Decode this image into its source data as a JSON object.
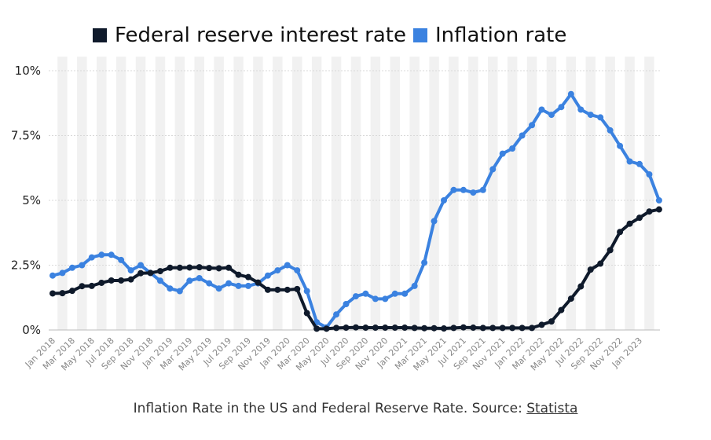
{
  "legend": {
    "fed_label": "Federal reserve interest rate",
    "infl_label": "Inflation rate"
  },
  "caption": {
    "text": "Inflation Rate in the US and Federal Reserve Rate. Source: ",
    "link": "Statista"
  },
  "colors": {
    "fed": "#0f1a2b",
    "inflation": "#3b82e0",
    "grid": "#d9d9d9",
    "band": "#f1f1f1",
    "axis_text": "#222222",
    "xtick_text": "#888888"
  },
  "chart_data": {
    "type": "line",
    "ylim": [
      0,
      10
    ],
    "yticks": [
      0,
      2.5,
      5,
      7.5,
      10
    ],
    "ytick_labels": [
      "0%",
      "2.5%",
      "5%",
      "7.5%",
      "10%"
    ],
    "grid": true,
    "legend_position": "top",
    "x": [
      "Jan 2018",
      "Feb 2018",
      "Mar 2018",
      "Apr 2018",
      "May 2018",
      "Jun 2018",
      "Jul 2018",
      "Aug 2018",
      "Sep 2018",
      "Oct 2018",
      "Nov 2018",
      "Dec 2018",
      "Jan 2019",
      "Feb 2019",
      "Mar 2019",
      "Apr 2019",
      "May 2019",
      "Jun 2019",
      "Jul 2019",
      "Aug 2019",
      "Sep 2019",
      "Oct 2019",
      "Nov 2019",
      "Dec 2019",
      "Jan 2020",
      "Feb 2020",
      "Mar 2020",
      "Apr 2020",
      "May 2020",
      "Jun 2020",
      "Jul 2020",
      "Aug 2020",
      "Sep 2020",
      "Oct 2020",
      "Nov 2020",
      "Dec 2020",
      "Jan 2021",
      "Feb 2021",
      "Mar 2021",
      "Apr 2021",
      "May 2021",
      "Jun 2021",
      "Jul 2021",
      "Aug 2021",
      "Sep 2021",
      "Oct 2021",
      "Nov 2021",
      "Dec 2021",
      "Jan 2022",
      "Feb 2022",
      "Mar 2022",
      "Apr 2022",
      "May 2022",
      "Jun 2022",
      "Jul 2022",
      "Aug 2022",
      "Sep 2022",
      "Oct 2022",
      "Nov 2022",
      "Dec 2022",
      "Jan 2023",
      "Feb 2023",
      "Mar 2023"
    ],
    "xtick_labels": [
      "Jan 2018",
      "Mar 2018",
      "May 2018",
      "Jul 2018",
      "Sep 2018",
      "Nov 2018",
      "Jan 2019",
      "Mar 2019",
      "May 2019",
      "Jul 2019",
      "Sep 2019",
      "Nov 2019",
      "Jan 2020",
      "Mar 2020",
      "May 2020",
      "Jul 2020",
      "Sep 2020",
      "Nov 2020",
      "Jan 2021",
      "Mar 2021",
      "May 2021",
      "Jul 2021",
      "Sep 2021",
      "Nov 2021",
      "Jan 2022",
      "Mar 2022",
      "May 2022",
      "Jul 2022",
      "Sep 2022",
      "Nov 2022",
      "Jan 2023"
    ],
    "series": [
      {
        "name": "Federal reserve interest rate",
        "values": [
          1.41,
          1.42,
          1.51,
          1.69,
          1.7,
          1.82,
          1.91,
          1.91,
          1.95,
          2.19,
          2.2,
          2.27,
          2.4,
          2.4,
          2.41,
          2.42,
          2.39,
          2.38,
          2.4,
          2.13,
          2.04,
          1.83,
          1.55,
          1.55,
          1.55,
          1.58,
          0.65,
          0.05,
          0.05,
          0.08,
          0.09,
          0.1,
          0.09,
          0.09,
          0.09,
          0.09,
          0.09,
          0.08,
          0.07,
          0.07,
          0.06,
          0.08,
          0.1,
          0.09,
          0.08,
          0.08,
          0.08,
          0.08,
          0.08,
          0.08,
          0.2,
          0.33,
          0.77,
          1.21,
          1.68,
          2.33,
          2.56,
          3.08,
          3.78,
          4.1,
          4.33,
          4.57,
          4.65
        ]
      },
      {
        "name": "Inflation rate",
        "values": [
          2.1,
          2.2,
          2.4,
          2.5,
          2.8,
          2.9,
          2.9,
          2.7,
          2.3,
          2.5,
          2.2,
          1.9,
          1.6,
          1.5,
          1.9,
          2.0,
          1.8,
          1.6,
          1.8,
          1.7,
          1.7,
          1.8,
          2.1,
          2.3,
          2.5,
          2.3,
          1.5,
          0.3,
          0.1,
          0.6,
          1.0,
          1.3,
          1.4,
          1.2,
          1.2,
          1.4,
          1.4,
          1.7,
          2.6,
          4.2,
          5.0,
          5.4,
          5.4,
          5.3,
          5.4,
          6.2,
          6.8,
          7.0,
          7.5,
          7.9,
          8.5,
          8.3,
          8.6,
          9.1,
          8.5,
          8.3,
          8.2,
          7.7,
          7.1,
          6.5,
          6.4,
          6.0,
          5.0
        ]
      }
    ]
  }
}
